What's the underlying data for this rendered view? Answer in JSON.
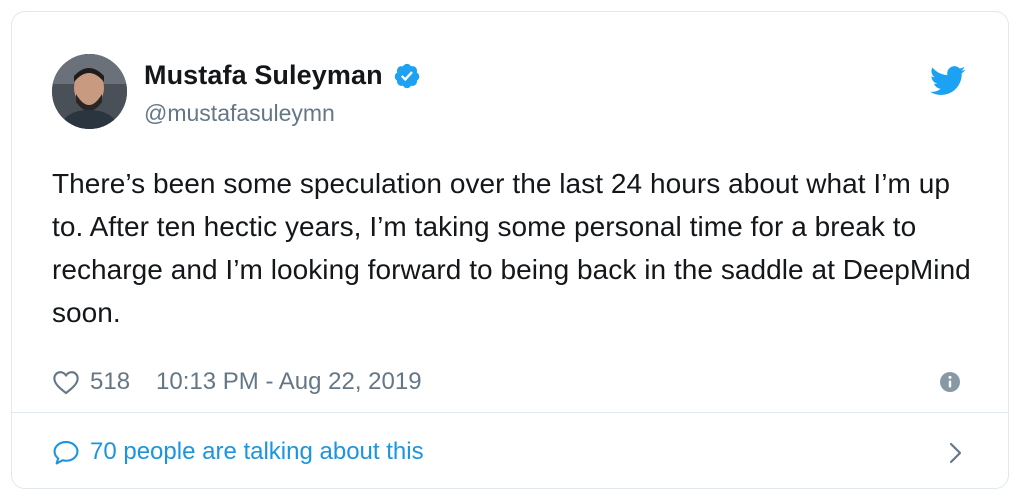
{
  "author": {
    "display_name": "Mustafa Suleyman",
    "handle": "@mustafasuleymn"
  },
  "tweet": {
    "text": "There’s been some speculation over the last 24 hours about what I’m up to. After ten hectic years, I’m taking some personal time for a break to recharge and I’m looking forward to being back in the saddle at DeepMind soon.",
    "likes": "518",
    "timestamp": "10:13 PM - Aug 22, 2019"
  },
  "footer": {
    "conversation_label": "70 people are talking about this"
  },
  "colors": {
    "accent": "#1b95e0",
    "verified": "#1da1f2",
    "secondary_text": "#657786",
    "border": "#e1e8ed"
  },
  "icons": [
    "verified-badge-icon",
    "twitter-logo-icon",
    "heart-icon",
    "info-icon",
    "speech-bubble-icon",
    "chevron-right-icon"
  ]
}
